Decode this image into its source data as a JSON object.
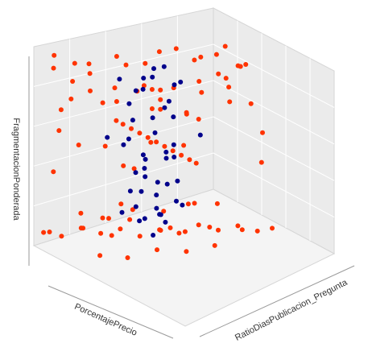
{
  "chart_data": {
    "type": "scatter",
    "projection": "3d",
    "xlabel": "PorcentajePrecio",
    "ylabel": "RatioDiasPublicacion_Pregunta",
    "zlabel": "FragmentacionPonderada",
    "grid": true,
    "legend": "none",
    "xlim": [
      0,
      1
    ],
    "ylim": [
      0,
      1
    ],
    "zlim": [
      0,
      1
    ],
    "series": [
      {
        "color": "#ff3300",
        "marker": "circle",
        "distribution": "outer shell of the cloud and flat band near the floor",
        "points": [
          [
            0.05,
            0.1,
            0.97
          ],
          [
            0.12,
            0.06,
            0.93
          ],
          [
            0.2,
            0.15,
            0.95
          ],
          [
            0.31,
            0.08,
            0.9
          ],
          [
            0.44,
            0.12,
            0.96
          ],
          [
            0.58,
            0.05,
            0.92
          ],
          [
            0.7,
            0.14,
            0.94
          ],
          [
            0.82,
            0.09,
            0.91
          ],
          [
            0.93,
            0.16,
            0.97
          ],
          [
            0.08,
            0.3,
            0.88
          ],
          [
            0.18,
            0.42,
            0.91
          ],
          [
            0.27,
            0.55,
            0.86
          ],
          [
            0.39,
            0.68,
            0.93
          ],
          [
            0.51,
            0.77,
            0.89
          ],
          [
            0.63,
            0.86,
            0.95
          ],
          [
            0.76,
            0.92,
            0.87
          ],
          [
            0.88,
            0.81,
            0.92
          ],
          [
            0.95,
            0.7,
            0.9
          ],
          [
            0.04,
            0.55,
            0.8
          ],
          [
            0.11,
            0.72,
            0.84
          ],
          [
            0.22,
            0.88,
            0.78
          ],
          [
            0.35,
            0.95,
            0.82
          ],
          [
            0.47,
            0.9,
            0.76
          ],
          [
            0.6,
            0.97,
            0.81
          ],
          [
            0.73,
            0.83,
            0.77
          ],
          [
            0.85,
            0.6,
            0.83
          ],
          [
            0.96,
            0.45,
            0.79
          ],
          [
            0.06,
            0.2,
            0.72
          ],
          [
            0.09,
            0.38,
            0.66
          ],
          [
            0.14,
            0.61,
            0.7
          ],
          [
            0.92,
            0.25,
            0.68
          ],
          [
            0.97,
            0.52,
            0.74
          ],
          [
            0.9,
            0.88,
            0.71
          ],
          [
            0.16,
            0.94,
            0.64
          ],
          [
            0.8,
            0.03,
            0.69
          ],
          [
            0.25,
            0.04,
            0.75
          ],
          [
            0.03,
            0.85,
            0.6
          ],
          [
            0.07,
            0.12,
            0.58
          ],
          [
            0.94,
            0.07,
            0.61
          ],
          [
            0.98,
            0.91,
            0.57
          ],
          [
            0.5,
            0.02,
            0.63
          ],
          [
            0.45,
            0.98,
            0.59
          ],
          [
            0.02,
            0.5,
            0.52
          ],
          [
            0.1,
            0.5,
            0.52
          ],
          [
            0.2,
            0.5,
            0.52
          ],
          [
            0.3,
            0.5,
            0.52
          ],
          [
            0.4,
            0.5,
            0.52
          ],
          [
            0.5,
            0.5,
            0.52
          ],
          [
            0.6,
            0.5,
            0.52
          ],
          [
            0.7,
            0.5,
            0.52
          ],
          [
            0.8,
            0.5,
            0.52
          ],
          [
            0.9,
            0.5,
            0.52
          ],
          [
            0.98,
            0.5,
            0.52
          ],
          [
            0.55,
            0.5,
            0.7
          ],
          [
            0.55,
            0.5,
            0.75
          ],
          [
            0.55,
            0.5,
            0.8
          ],
          [
            0.45,
            0.5,
            0.68
          ],
          [
            0.45,
            0.5,
            0.78
          ],
          [
            0.05,
            0.92,
            0.45
          ],
          [
            0.95,
            0.05,
            0.42
          ],
          [
            0.08,
            0.08,
            0.38
          ],
          [
            0.93,
            0.93,
            0.4
          ],
          [
            0.15,
            0.85,
            0.33
          ],
          [
            0.88,
            0.14,
            0.3
          ],
          [
            0.04,
            0.6,
            0.25
          ],
          [
            0.96,
            0.35,
            0.22
          ],
          [
            0.02,
            0.05,
            0.06
          ],
          [
            0.1,
            0.12,
            0.04
          ],
          [
            0.18,
            0.2,
            0.08
          ],
          [
            0.26,
            0.28,
            0.05
          ],
          [
            0.34,
            0.36,
            0.07
          ],
          [
            0.42,
            0.44,
            0.03
          ],
          [
            0.5,
            0.52,
            0.06
          ],
          [
            0.58,
            0.6,
            0.04
          ],
          [
            0.66,
            0.68,
            0.08
          ],
          [
            0.74,
            0.76,
            0.05
          ],
          [
            0.82,
            0.84,
            0.07
          ],
          [
            0.9,
            0.92,
            0.04
          ],
          [
            0.98,
            0.97,
            0.06
          ],
          [
            0.05,
            0.4,
            0.05
          ],
          [
            0.12,
            0.55,
            0.07
          ],
          [
            0.2,
            0.7,
            0.04
          ],
          [
            0.28,
            0.85,
            0.06
          ],
          [
            0.36,
            0.95,
            0.05
          ],
          [
            0.6,
            0.1,
            0.06
          ],
          [
            0.7,
            0.22,
            0.04
          ],
          [
            0.8,
            0.35,
            0.07
          ],
          [
            0.9,
            0.48,
            0.05
          ],
          [
            0.97,
            0.62,
            0.06
          ],
          [
            0.15,
            0.02,
            0.1
          ],
          [
            0.3,
            0.15,
            0.12
          ],
          [
            0.45,
            0.25,
            0.09
          ],
          [
            0.65,
            0.45,
            0.11
          ],
          [
            0.75,
            0.55,
            0.1
          ],
          [
            0.85,
            0.65,
            0.12
          ],
          [
            0.95,
            0.8,
            0.09
          ],
          [
            0.4,
            0.75,
            0.11
          ],
          [
            0.22,
            0.35,
            0.1
          ],
          [
            0.08,
            0.25,
            0.12
          ]
        ]
      },
      {
        "color": "#00008b",
        "marker": "circle",
        "distribution": "inner core of the cloud",
        "points": [
          [
            0.35,
            0.35,
            0.85
          ],
          [
            0.45,
            0.4,
            0.8
          ],
          [
            0.55,
            0.45,
            0.88
          ],
          [
            0.62,
            0.55,
            0.83
          ],
          [
            0.4,
            0.6,
            0.86
          ],
          [
            0.5,
            0.65,
            0.79
          ],
          [
            0.58,
            0.38,
            0.9
          ],
          [
            0.38,
            0.48,
            0.77
          ],
          [
            0.33,
            0.42,
            0.7
          ],
          [
            0.47,
            0.37,
            0.66
          ],
          [
            0.6,
            0.5,
            0.72
          ],
          [
            0.42,
            0.62,
            0.68
          ],
          [
            0.55,
            0.58,
            0.64
          ],
          [
            0.36,
            0.55,
            0.6
          ],
          [
            0.64,
            0.42,
            0.62
          ],
          [
            0.5,
            0.33,
            0.58
          ],
          [
            0.34,
            0.38,
            0.5
          ],
          [
            0.46,
            0.44,
            0.46
          ],
          [
            0.58,
            0.52,
            0.48
          ],
          [
            0.4,
            0.66,
            0.44
          ],
          [
            0.52,
            0.6,
            0.42
          ],
          [
            0.63,
            0.36,
            0.45
          ],
          [
            0.37,
            0.5,
            0.4
          ],
          [
            0.56,
            0.4,
            0.38
          ],
          [
            0.35,
            0.45,
            0.34
          ],
          [
            0.48,
            0.35,
            0.3
          ],
          [
            0.6,
            0.58,
            0.32
          ],
          [
            0.42,
            0.55,
            0.28
          ],
          [
            0.54,
            0.48,
            0.26
          ],
          [
            0.38,
            0.63,
            0.24
          ],
          [
            0.62,
            0.44,
            0.22
          ],
          [
            0.45,
            0.4,
            0.2
          ],
          [
            0.36,
            0.36,
            0.16
          ],
          [
            0.5,
            0.52,
            0.14
          ],
          [
            0.58,
            0.62,
            0.18
          ],
          [
            0.44,
            0.46,
            0.12
          ],
          [
            0.53,
            0.38,
            0.15
          ],
          [
            0.4,
            0.58,
            0.1
          ],
          [
            0.61,
            0.5,
            0.13
          ],
          [
            0.47,
            0.64,
            0.17
          ],
          [
            0.3,
            0.3,
            0.55
          ],
          [
            0.68,
            0.68,
            0.55
          ],
          [
            0.31,
            0.66,
            0.35
          ],
          [
            0.67,
            0.32,
            0.35
          ],
          [
            0.49,
            0.49,
            0.9
          ],
          [
            0.52,
            0.47,
            0.05
          ]
        ]
      }
    ]
  }
}
